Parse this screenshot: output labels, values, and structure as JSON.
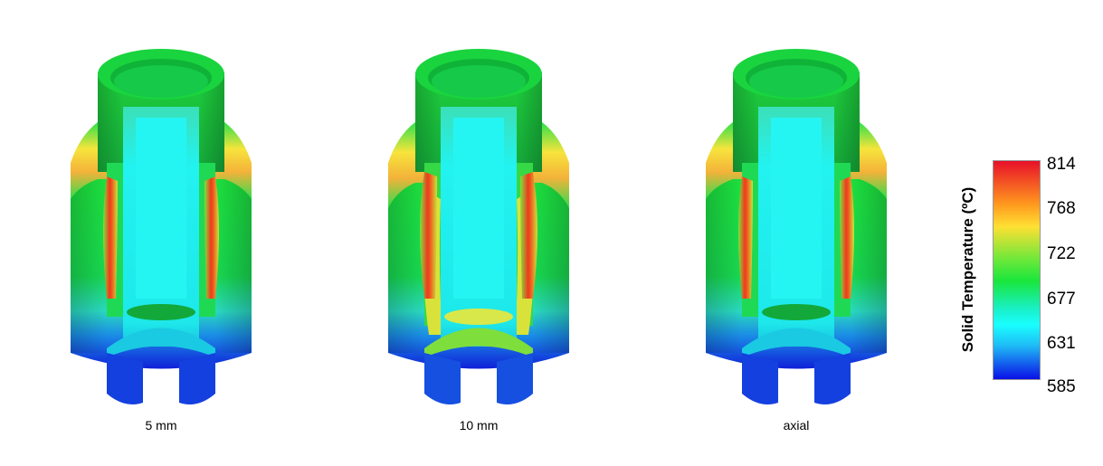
{
  "panels": [
    {
      "label": "5 mm",
      "variant": "5mm"
    },
    {
      "label": "10 mm",
      "variant": "10mm"
    },
    {
      "label": "axial",
      "variant": "axial"
    }
  ],
  "legend": {
    "title": "Solid Temperature (ºC)",
    "ticks": [
      "814",
      "768",
      "722",
      "677",
      "631",
      "585"
    ],
    "colors": [
      "#e8102a",
      "#ffe033",
      "#19e63c",
      "#19ffff",
      "#0a10e6"
    ]
  }
}
